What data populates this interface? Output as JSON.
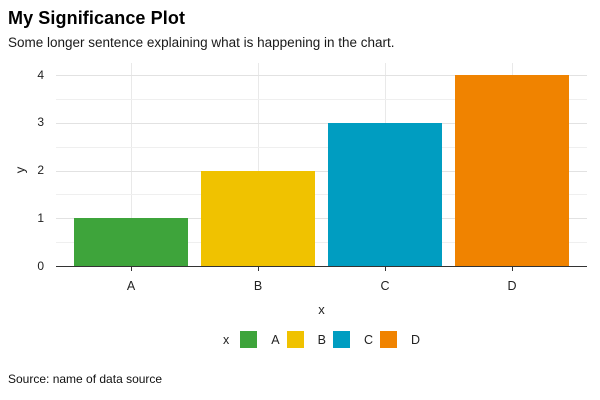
{
  "chart_data": {
    "type": "bar",
    "title": "My Significance Plot",
    "subtitle": "Some longer sentence explaining what is happening in the chart.",
    "categories": [
      "A",
      "B",
      "C",
      "D"
    ],
    "values": [
      1,
      2,
      3,
      4
    ],
    "colors": [
      "#3EA43B",
      "#F0C200",
      "#009DC1",
      "#F08300"
    ],
    "xlabel": "x",
    "ylabel": "y",
    "ylim": [
      0,
      4
    ],
    "yticks": [
      0,
      1,
      2,
      3,
      4
    ],
    "y_minor_step": 0.5,
    "grid": {
      "horizontal_major": true,
      "horizontal_minor": true,
      "vertical_at_categories": true
    },
    "legend": {
      "position": "bottom-center",
      "title": "x",
      "entries": [
        {
          "label": "A",
          "color": "#3EA43B"
        },
        {
          "label": "B",
          "color": "#F0C200"
        },
        {
          "label": "C",
          "color": "#009DC1"
        },
        {
          "label": "D",
          "color": "#F08300"
        }
      ]
    }
  },
  "footer": {
    "source": "Source: name of data source"
  }
}
